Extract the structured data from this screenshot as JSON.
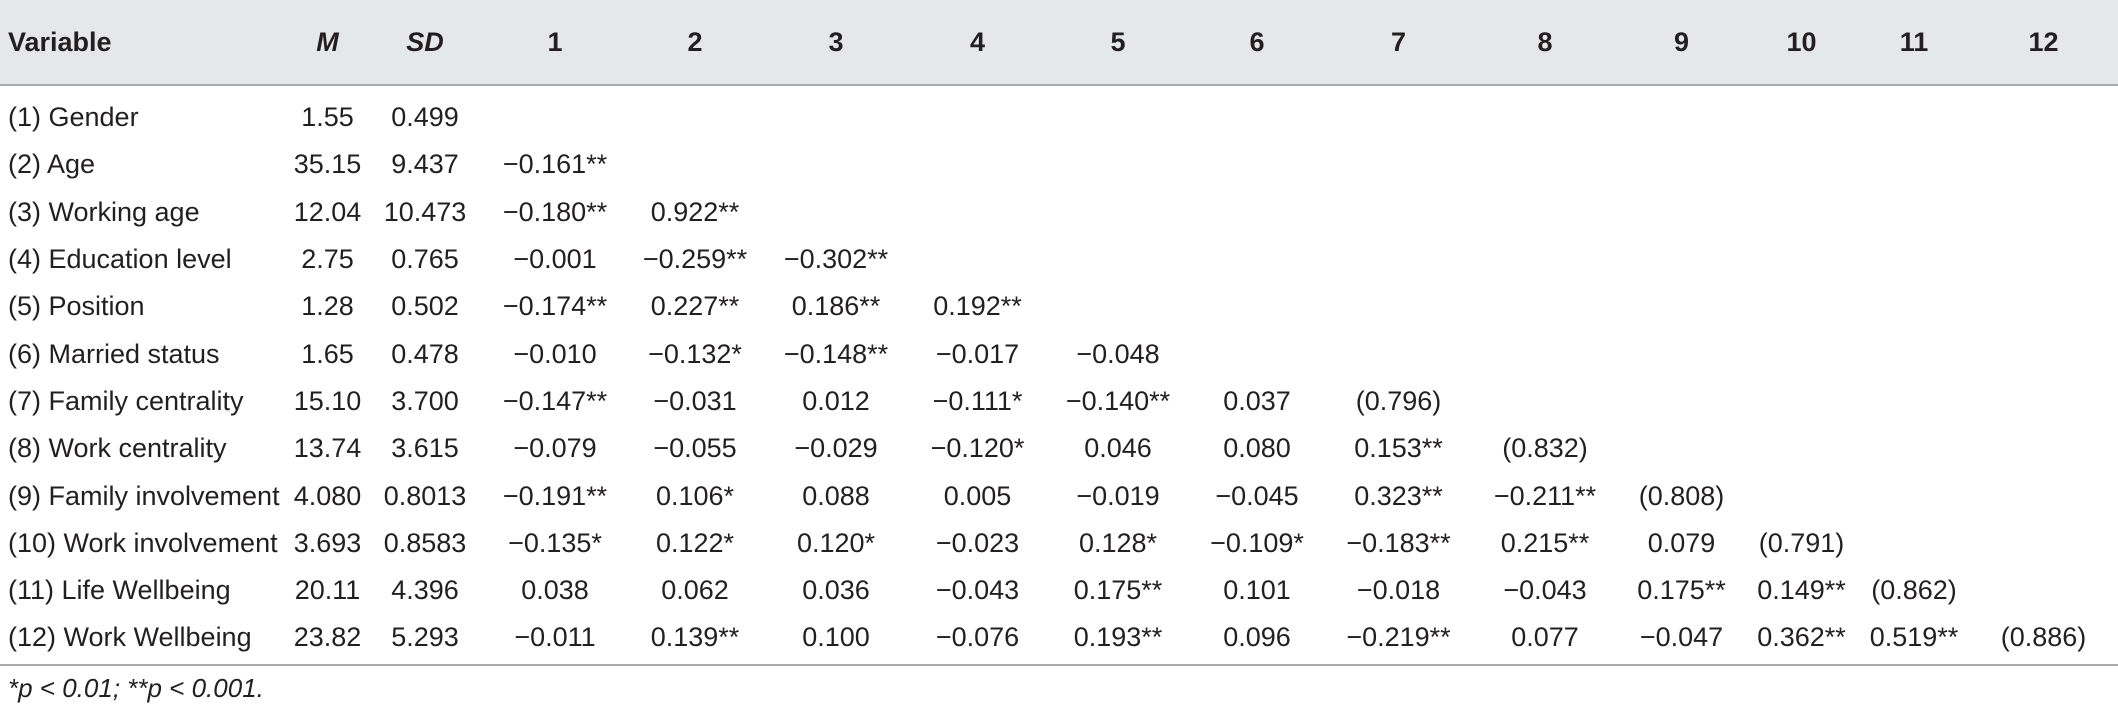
{
  "table": {
    "headers": [
      "Variable",
      "M",
      "SD",
      "1",
      "2",
      "3",
      "4",
      "5",
      "6",
      "7",
      "8",
      "9",
      "10",
      "11",
      "12"
    ],
    "rows": [
      [
        "(1) Gender",
        "1.55",
        "0.499",
        "",
        "",
        "",
        "",
        "",
        "",
        "",
        "",
        "",
        "",
        "",
        ""
      ],
      [
        "(2) Age",
        "35.15",
        "9.437",
        "−0.161**",
        "",
        "",
        "",
        "",
        "",
        "",
        "",
        "",
        "",
        "",
        ""
      ],
      [
        "(3) Working age",
        "12.04",
        "10.473",
        "−0.180**",
        "0.922**",
        "",
        "",
        "",
        "",
        "",
        "",
        "",
        "",
        "",
        ""
      ],
      [
        "(4) Education level",
        "2.75",
        "0.765",
        "−0.001",
        "−0.259**",
        "−0.302**",
        "",
        "",
        "",
        "",
        "",
        "",
        "",
        "",
        ""
      ],
      [
        "(5) Position",
        "1.28",
        "0.502",
        "−0.174**",
        "0.227**",
        "0.186**",
        "0.192**",
        "",
        "",
        "",
        "",
        "",
        "",
        "",
        ""
      ],
      [
        "(6) Married status",
        "1.65",
        "0.478",
        "−0.010",
        "−0.132*",
        "−0.148**",
        "−0.017",
        "−0.048",
        "",
        "",
        "",
        "",
        "",
        "",
        ""
      ],
      [
        "(7) Family centrality",
        "15.10",
        "3.700",
        "−0.147**",
        "−0.031",
        "0.012",
        "−0.111*",
        "−0.140**",
        "0.037",
        "(0.796)",
        "",
        "",
        "",
        "",
        ""
      ],
      [
        "(8) Work centrality",
        "13.74",
        "3.615",
        "−0.079",
        "−0.055",
        "−0.029",
        "−0.120*",
        "0.046",
        "0.080",
        "0.153**",
        "(0.832)",
        "",
        "",
        "",
        ""
      ],
      [
        "(9) Family involvement",
        "4.080",
        "0.8013",
        "−0.191**",
        "0.106*",
        "0.088",
        "0.005",
        "−0.019",
        "−0.045",
        "0.323**",
        "−0.211**",
        "(0.808)",
        "",
        "",
        ""
      ],
      [
        "(10) Work involvement",
        "3.693",
        "0.8583",
        "−0.135*",
        "0.122*",
        "0.120*",
        "−0.023",
        "0.128*",
        "−0.109*",
        "−0.183**",
        "0.215**",
        "0.079",
        "(0.791)",
        "",
        ""
      ],
      [
        "(11) Life Wellbeing",
        "20.11",
        "4.396",
        "0.038",
        "0.062",
        "0.036",
        "−0.043",
        "0.175**",
        "0.101",
        "−0.018",
        "−0.043",
        "0.175**",
        "0.149**",
        "(0.862)",
        ""
      ],
      [
        "(12) Work Wellbeing",
        "23.82",
        "5.293",
        "−0.011",
        "0.139**",
        "0.100",
        "−0.076",
        "0.193**",
        "0.096",
        "−0.219**",
        "0.077",
        "−0.047",
        "0.362**",
        "0.519**",
        "(0.886)"
      ]
    ]
  },
  "footnote": "*p < 0.01; **p < 0.001."
}
